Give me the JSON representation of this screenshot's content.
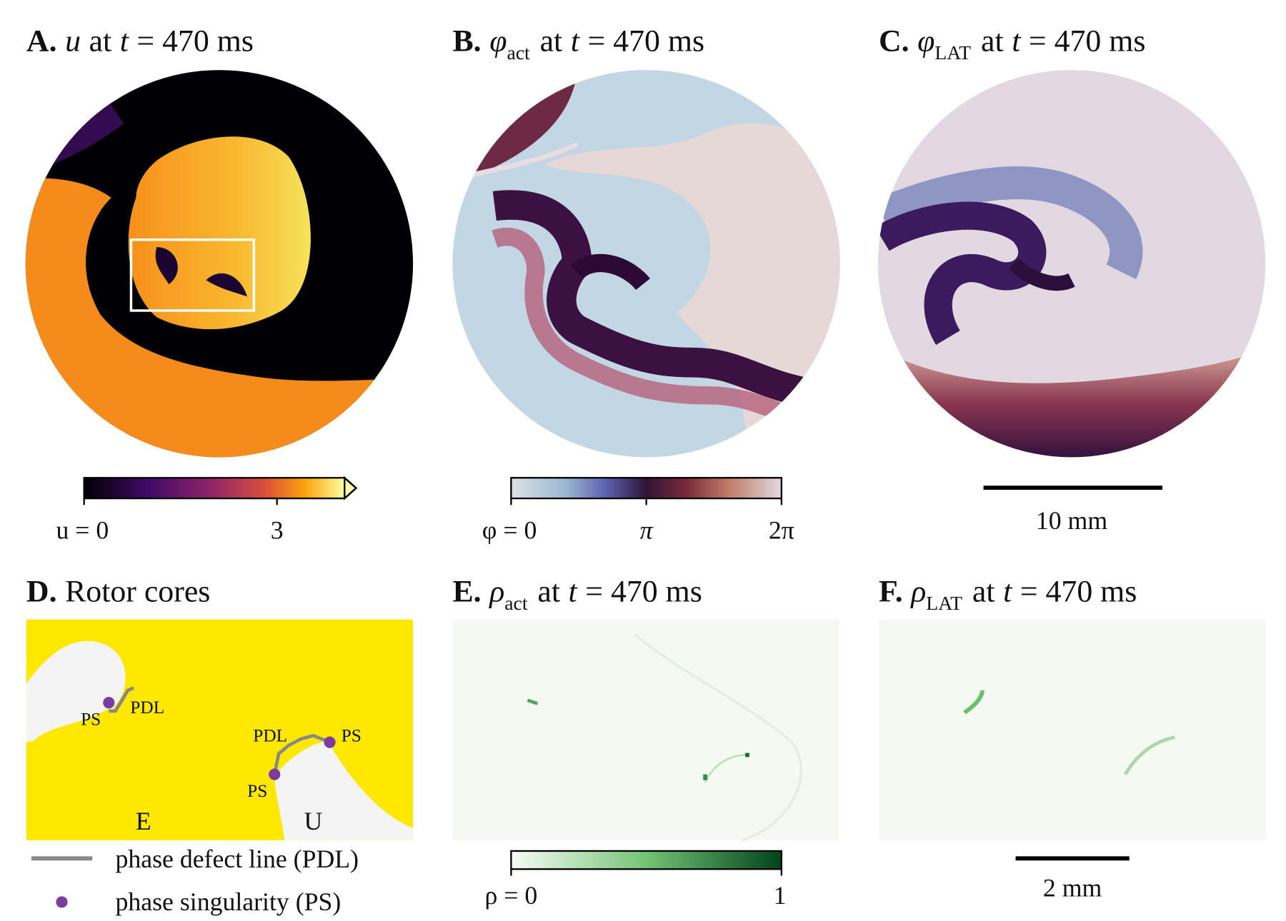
{
  "panels": [
    {
      "label": "A.",
      "symbol": "u",
      "pre": "at",
      "var": "t",
      "rest": "= 470 ms",
      "colorbar": [
        "u = 0",
        "3"
      ]
    },
    {
      "label": "B.",
      "symbol": "φ",
      "subscript": "act",
      "pre": "at",
      "var": "t",
      "rest": "= 470 ms",
      "colorbar": [
        "φ = 0",
        "π",
        "2π"
      ]
    },
    {
      "label": "C.",
      "symbol": "φ",
      "subscript": "LAT",
      "pre": "at",
      "var": "t",
      "rest": "= 470 ms",
      "scalebar": "10 mm"
    },
    {
      "label": "D.",
      "title": "Rotor cores",
      "annotations": [
        "PS",
        "PDL",
        "PDL",
        "PS",
        "PS",
        "E",
        "U"
      ],
      "legend": [
        "phase defect line (PDL)",
        "phase singularity (PS)"
      ]
    },
    {
      "label": "E.",
      "symbol": "ρ",
      "subscript": "act",
      "pre": "at",
      "var": "t",
      "rest": "= 470 ms",
      "colorbar": [
        "ρ = 0",
        "1"
      ]
    },
    {
      "label": "F.",
      "symbol": "ρ",
      "subscript": "LAT",
      "pre": "at",
      "var": "t",
      "rest": "= 470 ms",
      "scalebar": "2 mm"
    }
  ]
}
